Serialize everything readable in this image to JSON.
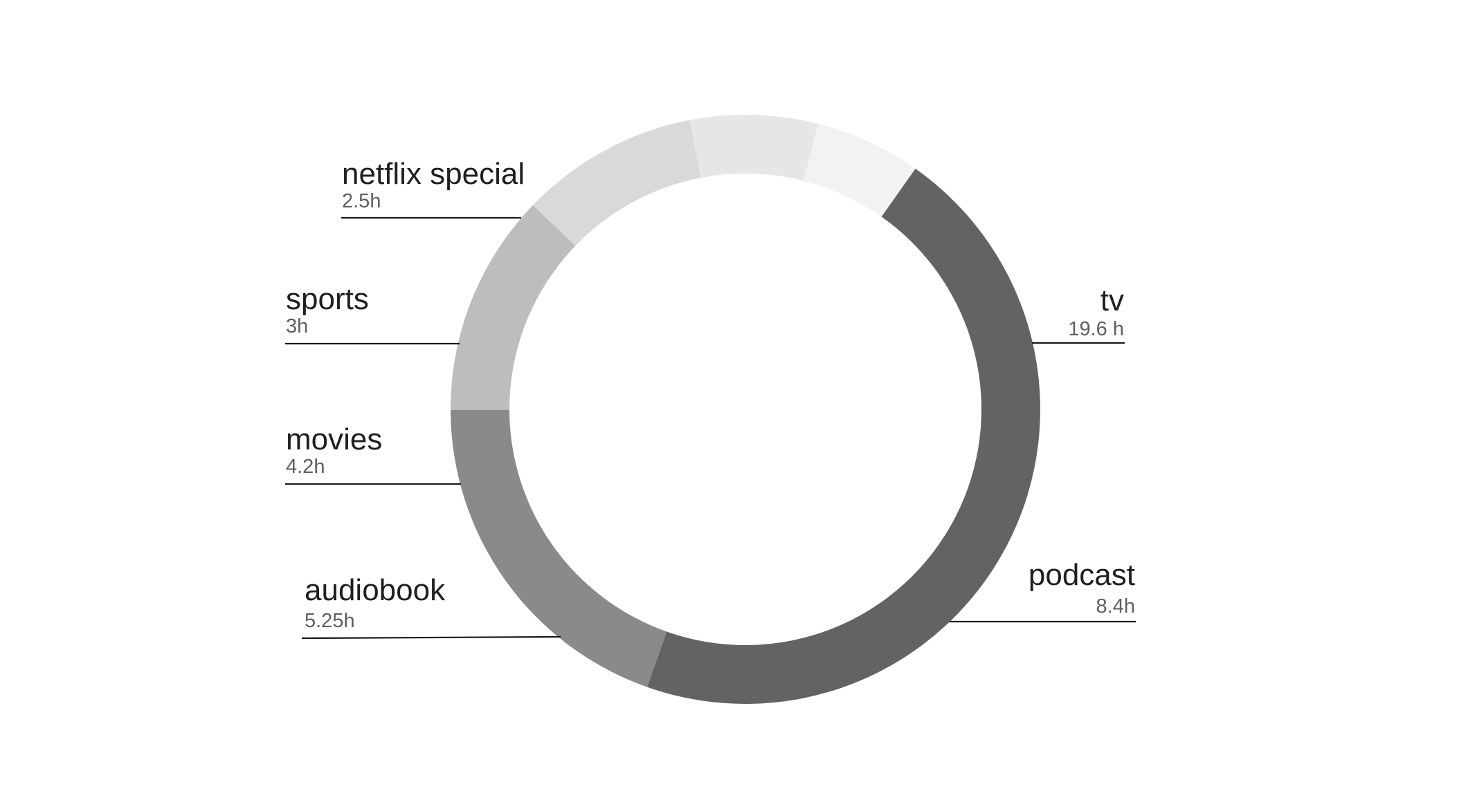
{
  "chart_data": {
    "type": "pie",
    "variant": "donut",
    "title": "",
    "grid": false,
    "legend": "none",
    "series": [
      {
        "name": "tv",
        "value": 19.6,
        "value_label": "19.6 h",
        "color": "#636363"
      },
      {
        "name": "podcast",
        "value": 8.4,
        "value_label": "8.4h",
        "color": "#8a8a8a"
      },
      {
        "name": "audiobook",
        "value": 5.25,
        "value_label": "5.25h",
        "color": "#bdbdbd"
      },
      {
        "name": "movies",
        "value": 4.2,
        "value_label": "4.2h",
        "color": "#d9d9d9"
      },
      {
        "name": "sports",
        "value": 3,
        "value_label": "3h",
        "color": "#e6e6e6"
      },
      {
        "name": "netflix special",
        "value": 2.5,
        "value_label": "2.5h",
        "color": "#f2f2f2"
      }
    ]
  }
}
